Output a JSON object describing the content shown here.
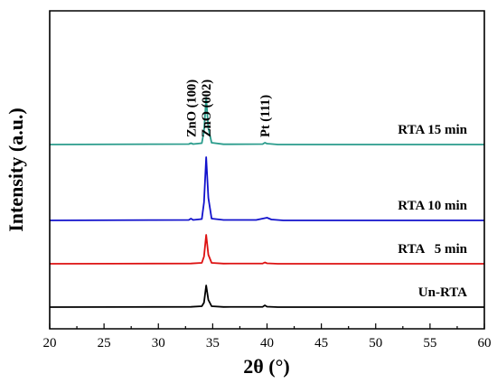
{
  "chart_data": {
    "type": "line",
    "xlabel": "2θ (°)",
    "ylabel": "Intensity (a.u.)",
    "xlim": [
      20,
      60
    ],
    "xticks": [
      "20",
      "25",
      "30",
      "35",
      "40",
      "45",
      "50",
      "55",
      "60"
    ],
    "yticks_visible": false,
    "series": [
      {
        "name": "Un-RTA",
        "color": "#000000",
        "offset": 0,
        "points": [
          [
            20,
            0
          ],
          [
            33.0,
            0.3
          ],
          [
            34.0,
            1.0
          ],
          [
            34.2,
            5
          ],
          [
            34.4,
            24
          ],
          [
            34.6,
            8
          ],
          [
            34.9,
            1.0
          ],
          [
            36,
            0.2
          ],
          [
            39.6,
            0.3
          ],
          [
            39.8,
            2
          ],
          [
            40.0,
            0.5
          ],
          [
            41,
            0
          ],
          [
            60,
            0
          ]
        ]
      },
      {
        "name": "RTA   5 min",
        "color": "#dd1111",
        "offset": 1,
        "points": [
          [
            20,
            0
          ],
          [
            33.0,
            0.3
          ],
          [
            34.0,
            1.0
          ],
          [
            34.2,
            8
          ],
          [
            34.4,
            32
          ],
          [
            34.6,
            10
          ],
          [
            34.9,
            1.0
          ],
          [
            36,
            0.2
          ],
          [
            39.6,
            0.3
          ],
          [
            39.8,
            1.5
          ],
          [
            40.0,
            0.5
          ],
          [
            41,
            0
          ],
          [
            60,
            0
          ]
        ]
      },
      {
        "name": "RTA 10 min",
        "color": "#1111cc",
        "offset": 2,
        "points": [
          [
            20,
            0
          ],
          [
            32.8,
            0.5
          ],
          [
            33.0,
            2
          ],
          [
            33.2,
            0.5
          ],
          [
            34.0,
            1.5
          ],
          [
            34.2,
            20
          ],
          [
            34.4,
            70
          ],
          [
            34.6,
            25
          ],
          [
            34.9,
            2
          ],
          [
            36,
            0.5
          ],
          [
            39.0,
            0.5
          ],
          [
            39.6,
            2
          ],
          [
            40.0,
            3
          ],
          [
            40.4,
            1
          ],
          [
            41.5,
            0
          ],
          [
            60,
            0
          ]
        ]
      },
      {
        "name": "RTA 15 min",
        "color": "#2a9c8c",
        "offset": 3,
        "points": [
          [
            20,
            0
          ],
          [
            32.8,
            0.5
          ],
          [
            33.0,
            1.5
          ],
          [
            33.2,
            0.5
          ],
          [
            34.0,
            1.5
          ],
          [
            34.2,
            15
          ],
          [
            34.4,
            52
          ],
          [
            34.6,
            18
          ],
          [
            34.9,
            2
          ],
          [
            36,
            0.3
          ],
          [
            39.6,
            0.5
          ],
          [
            39.8,
            2
          ],
          [
            40.0,
            1
          ],
          [
            41,
            0
          ],
          [
            60,
            0
          ]
        ]
      }
    ],
    "annotations": [
      {
        "text": "ZnO (100)",
        "x": 33.0
      },
      {
        "text": "ZnO (002)",
        "x": 34.4
      },
      {
        "text": "Pt (111)",
        "x": 39.8
      }
    ],
    "grid": false,
    "legend": "labels above each trace, right side"
  }
}
